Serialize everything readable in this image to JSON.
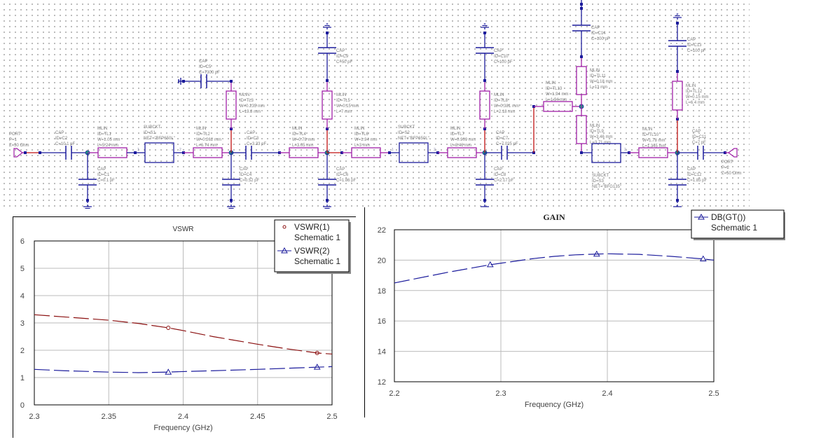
{
  "schematic": {
    "components": {
      "PORT1": [
        "PORT",
        "P=1",
        "Z=50 Ohm"
      ],
      "C2": [
        "CAP",
        "ID=C2",
        "C=10.1 pF"
      ],
      "C1": [
        "CAP",
        "ID=C1",
        "C=0.1 pF"
      ],
      "TL1": [
        "MLIN",
        "ID=TL1",
        "W=1.05 mm",
        "L=5.24 mm"
      ],
      "S1": [
        "SUBCKT",
        "ID=S1",
        "NET=\"BFP650L\""
      ],
      "TL2": [
        "MLIN",
        "ID=TL2",
        "W=0.262 mm",
        "L=6.74 mm"
      ],
      "TL3": [
        "MLIN",
        "ID=TL3",
        "W=0.235 mm",
        "L=19.8 mm"
      ],
      "C5": [
        "CAP",
        "ID=C5",
        "C=7300 pF"
      ],
      "C3": [
        "CAP",
        "ID=C3",
        "C=3.33 pF"
      ],
      "C4": [
        "CAP",
        "ID=C4",
        "C=0.52 pF"
      ],
      "TL4": [
        "MLIN",
        "ID=TL4",
        "W=0.78 mm",
        "L=3.05 mm"
      ],
      "C9": [
        "CAP",
        "ID=C9",
        "C=50 pF"
      ],
      "TL5": [
        "MLIN",
        "ID=TL5",
        "W=0.15 mm",
        "L=7 mm"
      ],
      "C6": [
        "CAP",
        "ID=C6",
        "C=1.86 pF"
      ],
      "TL6": [
        "MLIN",
        "ID=TL6",
        "W=1.94 mm",
        "L=3 mm"
      ],
      "S2": [
        "SUBCKT",
        "ID=S2",
        "NET=\"BFP650L\""
      ],
      "TL7": [
        "MLIN",
        "ID=TL7",
        "W=0.909 mm",
        "L=8.46 mm"
      ],
      "C10": [
        "CAP",
        "ID=C10",
        "C=100 pF"
      ],
      "TL8": [
        "MLIN",
        "ID=TL8",
        "W=0.381 mm",
        "L=2.18 mm"
      ],
      "C8": [
        "CAP",
        "ID=C8",
        "C=2.17 pF"
      ],
      "C7": [
        "CAP",
        "ID=C7",
        "C=7.025 pF"
      ],
      "TL13": [
        "MLIN",
        "ID=TL13",
        "W=1.94 mm",
        "L=1.94 mm"
      ],
      "C14": [
        "CAP",
        "ID=C14",
        "C=100 pF"
      ],
      "TL11": [
        "MLIN",
        "ID=TL11",
        "W=0.18 mm",
        "L=13 mm"
      ],
      "TL9": [
        "MLIN",
        "ID=TL9",
        "W=3.46 mm",
        "L=3.71 mm"
      ],
      "S3": [
        "SUBCKT",
        "ID=S3",
        "NET=\"BFG135\""
      ],
      "TL10": [
        "MLIN",
        "ID=TL10",
        "W=1.78 mm",
        "L=1.345 mm"
      ],
      "C13": [
        "CAP",
        "ID=C13",
        "C=100 pF"
      ],
      "TL12": [
        "MLIN",
        "ID=TL12",
        "W=0.15 mm",
        "L=6.4 mm"
      ],
      "C11": [
        "CAP",
        "ID=C11",
        "C=7 pF"
      ],
      "C12": [
        "CAP",
        "ID=C12",
        "C=1.85 pF"
      ],
      "PORT2": [
        "PORT",
        "P=2",
        "Z=50 Ohm"
      ]
    },
    "pins": [
      "1",
      "2",
      "1",
      "2",
      "2"
    ],
    "colors": {
      "wire": "#1c1c9c",
      "mlin": "#a020a8",
      "red": "#c01010",
      "node": "#20a080",
      "label": "#7a7a7a"
    }
  },
  "chart_data": [
    {
      "type": "line",
      "title": "VSWR",
      "xlabel": "Frequency (GHz)",
      "ylabel": "",
      "xlim": [
        2.3,
        2.5
      ],
      "ylim": [
        0,
        6
      ],
      "xticks": [
        "2.3",
        "2.35",
        "2.4",
        "2.45",
        "2.5"
      ],
      "xtick_values": [
        2.3,
        2.35,
        2.4,
        2.45,
        2.5
      ],
      "yticks": [
        "0",
        "1",
        "2",
        "3",
        "4",
        "5",
        "6"
      ],
      "ytick_values": [
        0,
        1,
        2,
        3,
        4,
        5,
        6
      ],
      "grid": true,
      "legend": "top-right",
      "x": [
        2.3,
        2.32,
        2.35,
        2.37,
        2.39,
        2.4,
        2.42,
        2.45,
        2.47,
        2.49,
        2.5
      ],
      "series": [
        {
          "name": "VSWR(1)",
          "source": "Schematic 1",
          "color": "#8b1010",
          "marker": "circle",
          "marker_x": [
            2.39,
            2.49
          ],
          "values": [
            3.3,
            3.22,
            3.1,
            2.98,
            2.82,
            2.72,
            2.5,
            2.22,
            2.05,
            1.9,
            1.86
          ]
        },
        {
          "name": "VSWR(2)",
          "source": "Schematic 1",
          "color": "#1c1c9c",
          "marker": "triangle",
          "marker_x": [
            2.39,
            2.49
          ],
          "values": [
            1.3,
            1.25,
            1.2,
            1.18,
            1.2,
            1.22,
            1.25,
            1.3,
            1.34,
            1.38,
            1.4
          ]
        }
      ]
    },
    {
      "type": "line",
      "title": "GAIN",
      "xlabel": "Frequency (GHz)",
      "ylabel": "",
      "xlim": [
        2.2,
        2.5
      ],
      "ylim": [
        12,
        22
      ],
      "xticks": [
        "2.2",
        "2.3",
        "2.4",
        "2.5"
      ],
      "xtick_values": [
        2.2,
        2.3,
        2.4,
        2.5
      ],
      "yticks": [
        "12",
        "14",
        "16",
        "18",
        "20",
        "22"
      ],
      "ytick_values": [
        12,
        14,
        16,
        18,
        20,
        22
      ],
      "grid": true,
      "legend": "top-right",
      "x": [
        2.2,
        2.25,
        2.29,
        2.3,
        2.33,
        2.35,
        2.37,
        2.39,
        2.4,
        2.43,
        2.46,
        2.49,
        2.5
      ],
      "series": [
        {
          "name": "DB(GT())",
          "source": "Schematic 1",
          "color": "#1c1c9c",
          "marker": "triangle",
          "marker_x": [
            2.29,
            2.39,
            2.49
          ],
          "values": [
            18.5,
            19.2,
            19.7,
            19.8,
            20.1,
            20.25,
            20.35,
            20.4,
            20.42,
            20.38,
            20.25,
            20.08,
            20.0
          ]
        }
      ]
    }
  ]
}
